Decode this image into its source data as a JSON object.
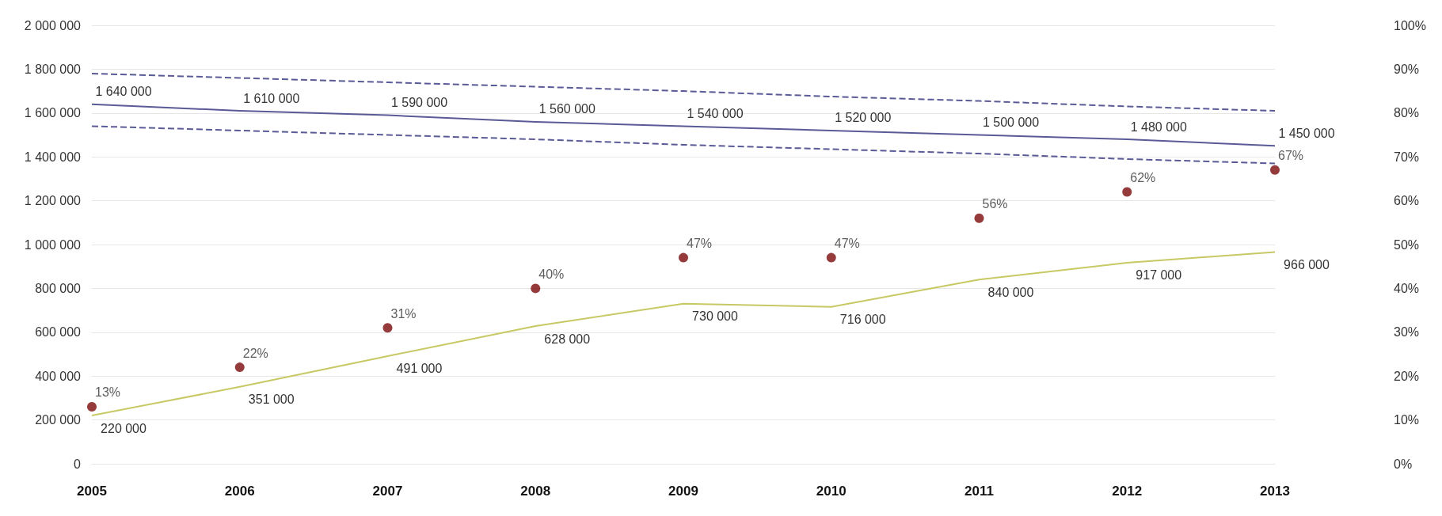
{
  "chart_data": {
    "type": "line",
    "categories": [
      "2005",
      "2006",
      "2007",
      "2008",
      "2009",
      "2010",
      "2011",
      "2012",
      "2013"
    ],
    "series": [
      {
        "color": "#5a5a96",
        "marker": "none",
        "values": [
          1640000,
          1610000,
          1590000,
          1560000,
          1540000,
          1520000,
          1500000,
          1480000,
          1450000
        ],
        "value_labels": [
          "1 640 000",
          "1 610 000",
          "1 590 000",
          "1 560 000",
          "1 540 000",
          "1 520 000",
          "1 500 000",
          "1 480 000",
          "1 450 000"
        ]
      },
      {
        "color": "#5a5a96",
        "marker": "none",
        "line_style": "dashed",
        "values": [
          1780000,
          1760000,
          1740000,
          1720000,
          1700000,
          1675000,
          1655000,
          1630000,
          1610000
        ]
      },
      {
        "color": "#5a5a96",
        "marker": "none",
        "line_style": "dashed",
        "values": [
          1540000,
          1520000,
          1500000,
          1480000,
          1455000,
          1435000,
          1415000,
          1390000,
          1370000
        ]
      },
      {
        "color": "#c8c864",
        "marker": "none",
        "values": [
          220000,
          351000,
          491000,
          628000,
          730000,
          716000,
          840000,
          917000,
          966000
        ],
        "value_labels": [
          "220 000",
          "351 000",
          "491 000",
          "628 000",
          "730 000",
          "716 000",
          "840 000",
          "917 000",
          "966 000"
        ]
      },
      {
        "type": "scatter",
        "axis": "y2",
        "marker": "circle",
        "color": "#7a0a0a",
        "values": [
          13,
          22,
          31,
          40,
          47,
          47,
          56,
          62,
          67
        ],
        "value_labels": [
          "13%",
          "22%",
          "31%",
          "40%",
          "47%",
          "47%",
          "56%",
          "62%",
          "67%"
        ]
      }
    ],
    "ylim": [
      0,
      2000000
    ],
    "yticks": [
      {
        "value": 0,
        "label": "0"
      },
      {
        "value": 200000,
        "label": "200 000"
      },
      {
        "value": 400000,
        "label": "400 000"
      },
      {
        "value": 600000,
        "label": "600 000"
      },
      {
        "value": 800000,
        "label": "800 000"
      },
      {
        "value": 1000000,
        "label": "1 000 000"
      },
      {
        "value": 1200000,
        "label": "1 200 000"
      },
      {
        "value": 1400000,
        "label": "1 400 000"
      },
      {
        "value": 1600000,
        "label": "1 600 000"
      },
      {
        "value": 1800000,
        "label": "1 800 000"
      },
      {
        "value": 2000000,
        "label": "2 000 000"
      }
    ],
    "y2lim": [
      0,
      100
    ],
    "y2ticks": [
      {
        "value": 0,
        "label": "0%"
      },
      {
        "value": 10,
        "label": "10%"
      },
      {
        "value": 20,
        "label": "20%"
      },
      {
        "value": 30,
        "label": "30%"
      },
      {
        "value": 40,
        "label": "40%"
      },
      {
        "value": 50,
        "label": "50%"
      },
      {
        "value": 60,
        "label": "60%"
      },
      {
        "value": 70,
        "label": "70%"
      },
      {
        "value": 80,
        "label": "80%"
      },
      {
        "value": 90,
        "label": "90%"
      },
      {
        "value": 100,
        "label": "100%"
      }
    ],
    "grid": "y"
  }
}
